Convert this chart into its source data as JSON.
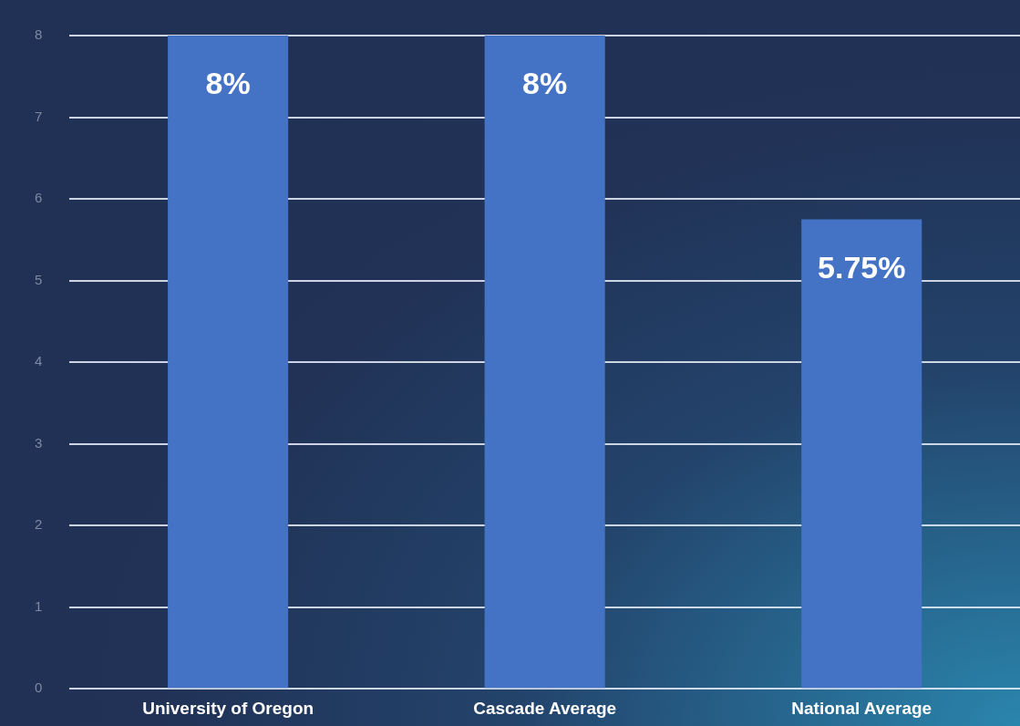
{
  "chart_data": {
    "type": "bar",
    "categories": [
      "University of Oregon",
      "Cascade Average",
      "National Average"
    ],
    "values": [
      8,
      8,
      5.75
    ],
    "color": "#4472c4",
    "value_labels": [
      "8%",
      "8%",
      "5.75%"
    ],
    "ylim": [
      0,
      8
    ],
    "yticks": [
      0,
      1,
      2,
      3,
      4,
      5,
      6,
      7,
      8
    ],
    "grid": "y",
    "legend": false
  }
}
